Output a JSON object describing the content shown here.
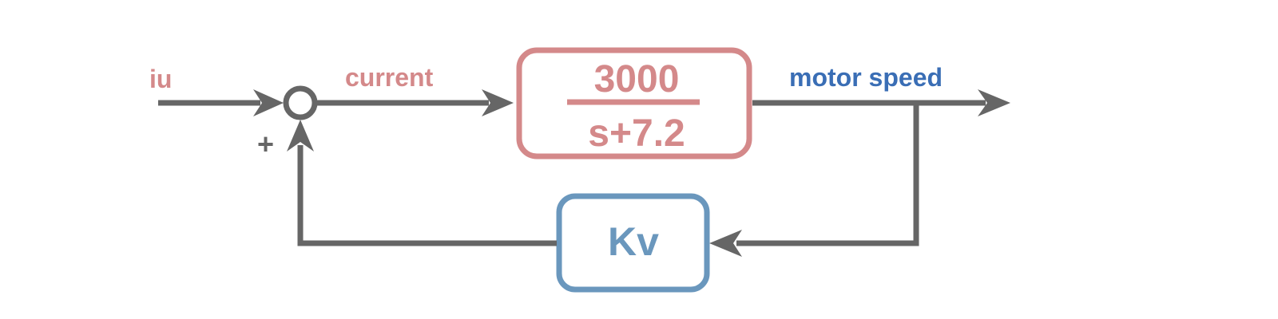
{
  "labels": {
    "input": "iu",
    "current": "current",
    "output": "motor speed",
    "feedback_sign": "+"
  },
  "plant": {
    "numerator": "3000",
    "denominator": "s+7.2"
  },
  "feedback": {
    "gain": "Kv"
  },
  "colors": {
    "line": "#666666",
    "plant": "#d4898a",
    "feedback": "#6a97bd",
    "output_label": "#3a6eb5"
  }
}
